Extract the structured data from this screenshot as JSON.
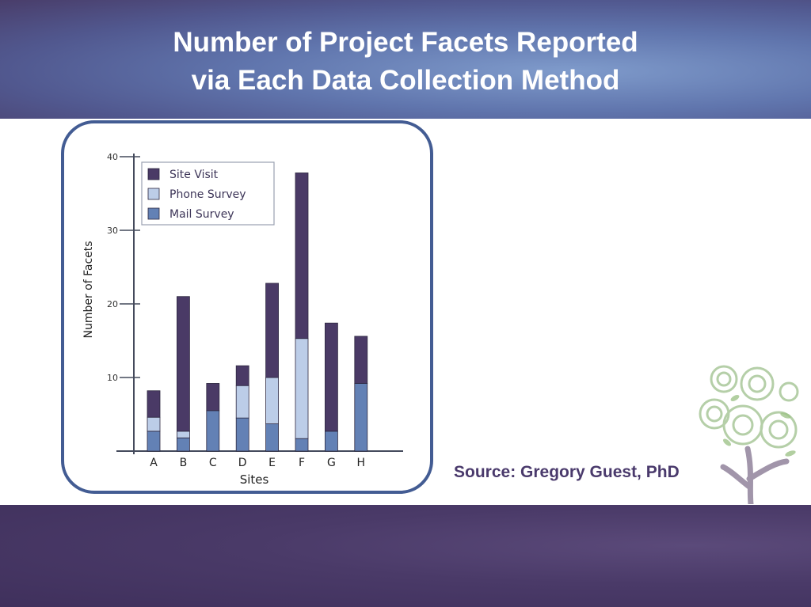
{
  "title_lines": [
    "Number of Project Facets Reported",
    "via Each Data Collection Method"
  ],
  "source": "Source: Gregory Guest, PhD",
  "colors": {
    "site_visit": "#4a3a66",
    "phone_survey": "#bccde8",
    "mail_survey": "#6381b5",
    "frame": "#435c93",
    "source_text": "#4a3a6c"
  },
  "chart_data": {
    "type": "bar",
    "stacked": true,
    "categories": [
      "A",
      "B",
      "C",
      "D",
      "E",
      "F",
      "G",
      "H"
    ],
    "series": [
      {
        "name": "Mail Survey",
        "color": "#6381b5",
        "values": [
          2.7,
          1.8,
          5.5,
          4.5,
          3.7,
          1.7,
          2.7,
          9.2
        ]
      },
      {
        "name": "Phone Survey",
        "color": "#bccde8",
        "values": [
          1.9,
          0.9,
          0,
          4.4,
          6.3,
          13.6,
          0,
          0
        ]
      },
      {
        "name": "Site Visit",
        "color": "#4a3a66",
        "values": [
          3.6,
          18.3,
          3.7,
          2.7,
          12.8,
          22.5,
          14.7,
          6.4
        ]
      }
    ],
    "legend_order": [
      "Site Visit",
      "Phone Survey",
      "Mail Survey"
    ],
    "legend_position": "top-left",
    "xlabel": "Sites",
    "ylabel": "Number of Facets",
    "yticks": [
      10,
      20,
      30,
      40
    ],
    "ylim": [
      0,
      40
    ],
    "grid": false
  }
}
